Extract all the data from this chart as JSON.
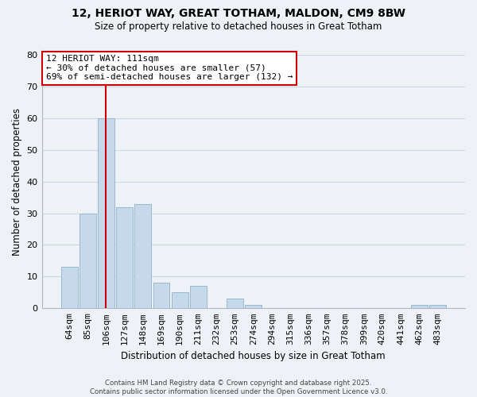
{
  "title1": "12, HERIOT WAY, GREAT TOTHAM, MALDON, CM9 8BW",
  "title2": "Size of property relative to detached houses in Great Totham",
  "xlabel": "Distribution of detached houses by size in Great Totham",
  "ylabel": "Number of detached properties",
  "bar_labels": [
    "64sqm",
    "85sqm",
    "106sqm",
    "127sqm",
    "148sqm",
    "169sqm",
    "190sqm",
    "211sqm",
    "232sqm",
    "253sqm",
    "274sqm",
    "294sqm",
    "315sqm",
    "336sqm",
    "357sqm",
    "378sqm",
    "399sqm",
    "420sqm",
    "441sqm",
    "462sqm",
    "483sqm"
  ],
  "bar_values": [
    13,
    30,
    60,
    32,
    33,
    8,
    5,
    7,
    0,
    3,
    1,
    0,
    0,
    0,
    0,
    0,
    0,
    0,
    0,
    1,
    1
  ],
  "bar_color": "#c6d9ea",
  "bar_edge_color": "#9ab8d0",
  "grid_color": "#c8d8e8",
  "background_color": "#eef2f7",
  "vline_color": "#cc0000",
  "annotation_title": "12 HERIOT WAY: 111sqm",
  "annotation_line1": "← 30% of detached houses are smaller (57)",
  "annotation_line2": "69% of semi-detached houses are larger (132) →",
  "annotation_box_color": "#ffffff",
  "annotation_box_edge": "#cc0000",
  "ylim": [
    0,
    80
  ],
  "yticks": [
    0,
    10,
    20,
    30,
    40,
    50,
    60,
    70,
    80
  ],
  "footer1": "Contains HM Land Registry data © Crown copyright and database right 2025.",
  "footer2": "Contains public sector information licensed under the Open Government Licence v3.0."
}
